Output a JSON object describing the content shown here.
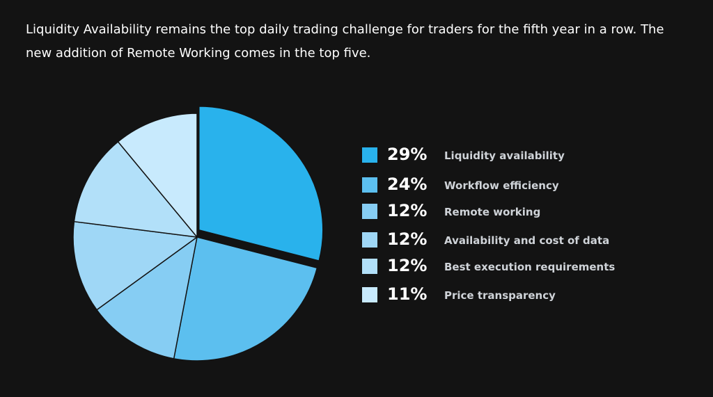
{
  "chart_data": {
    "type": "pie",
    "title": "",
    "subtitle": "Liquidity Availability remains the top daily trading challenge for traders for the fifth year in a row. The new addition of Remote Working comes in the top five.",
    "legend_position": "right",
    "slices": [
      {
        "label": "Liquidity availability",
        "value": 29,
        "value_label": "29%",
        "color": "#29b2ec",
        "exploded": true
      },
      {
        "label": "Workflow efficiency",
        "value": 24,
        "value_label": "24%",
        "color": "#5cbfef"
      },
      {
        "label": "Remote working",
        "value": 12,
        "value_label": "12%",
        "color": "#86cdf3"
      },
      {
        "label": "Availability and cost of data",
        "value": 12,
        "value_label": "12%",
        "color": "#9fd7f6"
      },
      {
        "label": "Best execution requirements",
        "value": 12,
        "value_label": "12%",
        "color": "#b2e0f9"
      },
      {
        "label": "Price transparency",
        "value": 11,
        "value_label": "11%",
        "color": "#c8eafd"
      }
    ]
  }
}
